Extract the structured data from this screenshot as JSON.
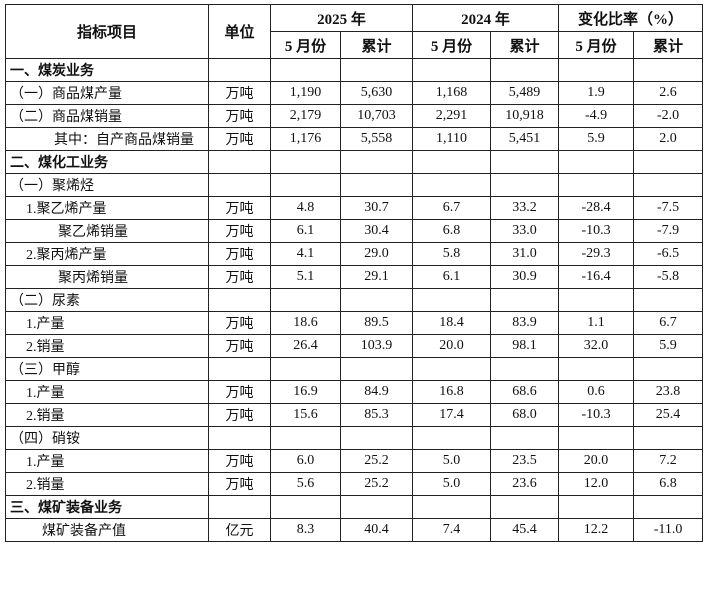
{
  "header": {
    "item": "指标项目",
    "unit": "单位",
    "y2025": "2025 年",
    "y2024": "2024 年",
    "change": "变化比率（%）",
    "month": "5 月份",
    "cumulative": "累计"
  },
  "rows": [
    {
      "name": "一、煤炭业务",
      "style": "sec",
      "unit": "",
      "v": [
        "",
        "",
        "",
        "",
        "",
        ""
      ]
    },
    {
      "name": "（一）商品煤产量",
      "style": "",
      "unit": "万吨",
      "v": [
        "1,190",
        "5,630",
        "1,168",
        "5,489",
        "1.9",
        "2.6"
      ]
    },
    {
      "name": "（二）商品煤销量",
      "style": "",
      "unit": "万吨",
      "v": [
        "2,179",
        "10,703",
        "2,291",
        "10,918",
        "-4.9",
        "-2.0"
      ]
    },
    {
      "name": "其中：自产商品煤销量",
      "style": "i2",
      "unit": "万吨",
      "v": [
        "1,176",
        "5,558",
        "1,110",
        "5,451",
        "5.9",
        "2.0"
      ]
    },
    {
      "name": "二、煤化工业务",
      "style": "sec",
      "unit": "",
      "v": [
        "",
        "",
        "",
        "",
        "",
        ""
      ]
    },
    {
      "name": "（一）聚烯烃",
      "style": "",
      "unit": "",
      "v": [
        "",
        "",
        "",
        "",
        "",
        ""
      ]
    },
    {
      "name": "1.聚乙烯产量",
      "style": "i1",
      "unit": "万吨",
      "v": [
        "4.8",
        "30.7",
        "6.7",
        "33.2",
        "-28.4",
        "-7.5"
      ]
    },
    {
      "name": "聚乙烯销量",
      "style": "i4",
      "unit": "万吨",
      "v": [
        "6.1",
        "30.4",
        "6.8",
        "33.0",
        "-10.3",
        "-7.9"
      ]
    },
    {
      "name": "2.聚丙烯产量",
      "style": "i1",
      "unit": "万吨",
      "v": [
        "4.1",
        "29.0",
        "5.8",
        "31.0",
        "-29.3",
        "-6.5"
      ]
    },
    {
      "name": "聚丙烯销量",
      "style": "i4",
      "unit": "万吨",
      "v": [
        "5.1",
        "29.1",
        "6.1",
        "30.9",
        "-16.4",
        "-5.8"
      ]
    },
    {
      "name": "（二）尿素",
      "style": "",
      "unit": "",
      "v": [
        "",
        "",
        "",
        "",
        "",
        ""
      ]
    },
    {
      "name": "1.产量",
      "style": "i1",
      "unit": "万吨",
      "v": [
        "18.6",
        "89.5",
        "18.4",
        "83.9",
        "1.1",
        "6.7"
      ]
    },
    {
      "name": "2.销量",
      "style": "i1",
      "unit": "万吨",
      "v": [
        "26.4",
        "103.9",
        "20.0",
        "98.1",
        "32.0",
        "5.9"
      ]
    },
    {
      "name": "（三）甲醇",
      "style": "",
      "unit": "",
      "v": [
        "",
        "",
        "",
        "",
        "",
        ""
      ]
    },
    {
      "name": "1.产量",
      "style": "i1",
      "unit": "万吨",
      "v": [
        "16.9",
        "84.9",
        "16.8",
        "68.6",
        "0.6",
        "23.8"
      ]
    },
    {
      "name": "2.销量",
      "style": "i1",
      "unit": "万吨",
      "v": [
        "15.6",
        "85.3",
        "17.4",
        "68.0",
        "-10.3",
        "25.4"
      ]
    },
    {
      "name": "（四）硝铵",
      "style": "",
      "unit": "",
      "v": [
        "",
        "",
        "",
        "",
        "",
        ""
      ]
    },
    {
      "name": "1.产量",
      "style": "i1",
      "unit": "万吨",
      "v": [
        "6.0",
        "25.2",
        "5.0",
        "23.5",
        "20.0",
        "7.2"
      ]
    },
    {
      "name": "2.销量",
      "style": "i1",
      "unit": "万吨",
      "v": [
        "5.6",
        "25.2",
        "5.0",
        "23.6",
        "12.0",
        "6.8"
      ]
    },
    {
      "name": "三、煤矿装备业务",
      "style": "sec",
      "unit": "",
      "v": [
        "",
        "",
        "",
        "",
        "",
        ""
      ]
    },
    {
      "name": "煤矿装备产值",
      "style": "i3",
      "unit": "亿元",
      "v": [
        "8.3",
        "40.4",
        "7.4",
        "45.4",
        "12.2",
        "-11.0"
      ]
    }
  ]
}
